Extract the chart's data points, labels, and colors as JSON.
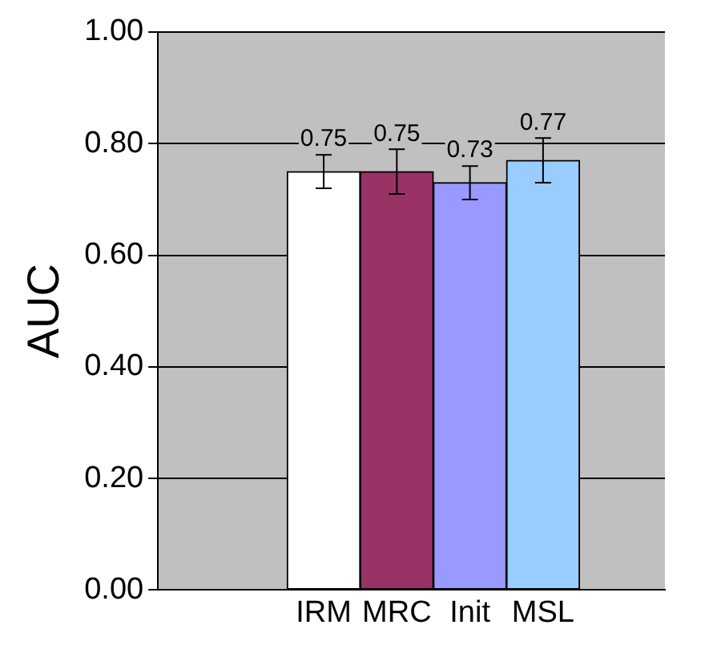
{
  "chart_data": {
    "type": "bar",
    "ylabel": "AUC",
    "categories": [
      "IRM",
      "MRC",
      "Init",
      "MSL"
    ],
    "values": [
      0.75,
      0.75,
      0.73,
      0.77
    ],
    "colors": [
      "#ffffff",
      "#993366",
      "#9999ff",
      "#99ccff"
    ],
    "errors": [
      0.03,
      0.04,
      0.03,
      0.04
    ],
    "data_labels": true,
    "ylim": [
      0,
      1
    ],
    "yticks": [
      {
        "value": 0,
        "label": "0.00"
      },
      {
        "value": 0.2,
        "label": "0.20"
      },
      {
        "value": 0.4,
        "label": "0.40"
      },
      {
        "value": 0.6,
        "label": "0.60"
      },
      {
        "value": 0.8,
        "label": "0.80"
      },
      {
        "value": 1,
        "label": "1.00"
      }
    ],
    "grid": "y"
  }
}
